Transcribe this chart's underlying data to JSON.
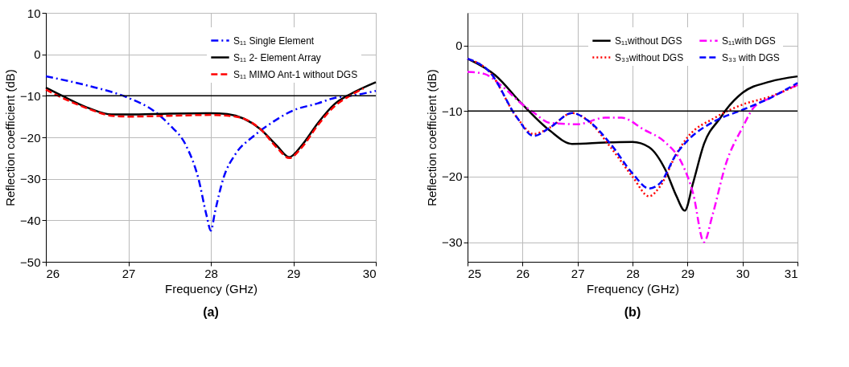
{
  "chart_data": [
    {
      "type": "line",
      "title": "(a)",
      "xlabel": "Frequency (GHz)",
      "ylabel": "Reflection coefficient (dB)",
      "xlim": [
        26,
        30
      ],
      "xticks": [
        26,
        27,
        28,
        29,
        30
      ],
      "ylim": [
        -50,
        10
      ],
      "yticks": [
        -50,
        -40,
        -30,
        -20,
        -10,
        0,
        10
      ],
      "grid": true,
      "legend": "top right",
      "marker": "none",
      "ref_lines": [
        {
          "axis": "y",
          "value": -10,
          "color": "#000000",
          "line_style": "solid"
        }
      ],
      "series": [
        {
          "name": "S₁₁ Single Element",
          "color": "#0000ff",
          "line_style": "dashdot",
          "x": [
            26,
            26.5,
            27,
            27.3,
            27.5,
            27.7,
            27.85,
            27.95,
            28.0,
            28.05,
            28.15,
            28.3,
            28.5,
            28.7,
            29,
            29.3,
            29.5,
            29.7,
            30
          ],
          "values": [
            -5.3,
            -7.5,
            -10.5,
            -13.5,
            -17,
            -22,
            -30,
            -39,
            -42.5,
            -38,
            -30,
            -24,
            -20,
            -17,
            -13.5,
            -11.8,
            -10.5,
            -10,
            -8.8
          ]
        },
        {
          "name": "S₁₁ 2- Element Array",
          "color": "#000000",
          "line_style": "solid",
          "x": [
            26,
            26.2,
            26.5,
            26.8,
            27,
            27.5,
            28,
            28.2,
            28.4,
            28.6,
            28.8,
            28.95,
            29.1,
            29.3,
            29.5,
            29.7,
            30
          ],
          "values": [
            -8,
            -10,
            -12.8,
            -14.5,
            -14.5,
            -14.3,
            -14.2,
            -14.4,
            -15.5,
            -18,
            -22,
            -24.8,
            -22,
            -16.5,
            -12,
            -9.5,
            -6.7
          ]
        },
        {
          "name": "S₁₁ MIMO Ant-1 without DGS",
          "color": "#ff0000",
          "line_style": "dashed",
          "x": [
            26,
            26.2,
            26.5,
            26.8,
            27,
            27.5,
            28,
            28.3,
            28.6,
            28.8,
            28.95,
            29.1,
            29.3,
            29.5,
            29.7,
            29.85
          ],
          "values": [
            -8.5,
            -10.5,
            -13,
            -14.8,
            -15,
            -14.8,
            -14.6,
            -15,
            -18,
            -22.5,
            -25,
            -22.5,
            -17,
            -12.5,
            -9.8,
            -8.2
          ]
        }
      ]
    },
    {
      "type": "line",
      "title": "(b)",
      "xlabel": "Frequency (GHz)",
      "ylabel": "Reflection coefficient (dB)",
      "xlim": [
        25,
        31
      ],
      "xticks": [
        25,
        26,
        27,
        28,
        29,
        30,
        31
      ],
      "ylim": [
        -33,
        5
      ],
      "yticks": [
        -30,
        -20,
        -10,
        0
      ],
      "grid": true,
      "legend": "top right",
      "marker": "none",
      "ref_lines": [
        {
          "axis": "y",
          "value": -10,
          "color": "#000000",
          "line_style": "solid"
        }
      ],
      "series": [
        {
          "name": "S₁₁without DGS",
          "color": "#000000",
          "line_style": "solid",
          "x": [
            25,
            25.5,
            26,
            26.5,
            26.9,
            27.5,
            28,
            28.3,
            28.6,
            28.8,
            28.95,
            29.1,
            29.3,
            29.6,
            29.7,
            30,
            30.5,
            31
          ],
          "values": [
            -2,
            -4.5,
            -9,
            -13,
            -15,
            -14.8,
            -14.7,
            -15.5,
            -19,
            -23,
            -25.2,
            -21,
            -15,
            -11,
            -9.8,
            -7.2,
            -5.5,
            -4.7
          ]
        },
        {
          "name": "S₁₁with DGS",
          "color": "#ff00ff",
          "line_style": "dashdot",
          "x": [
            25,
            25.3,
            25.6,
            26,
            26.2,
            26.5,
            27,
            27.5,
            27.8,
            28.2,
            28.6,
            28.9,
            29.1,
            29.3,
            29.45,
            29.7,
            30,
            30.2,
            30.5,
            31
          ],
          "values": [
            -4,
            -4.3,
            -6,
            -9,
            -10.2,
            -11.8,
            -12,
            -11,
            -11,
            -12.8,
            -14.8,
            -18,
            -22.5,
            -30,
            -26,
            -18,
            -12.5,
            -9.5,
            -8,
            -6
          ]
        },
        {
          "name": "S₃₃without DGS",
          "color": "#ff0000",
          "line_style": "dotted",
          "x": [
            25,
            25.4,
            25.9,
            26.2,
            26.5,
            26.9,
            27.2,
            27.6,
            28,
            28.3,
            28.5,
            28.8,
            29,
            29.5,
            30,
            30.5,
            31
          ],
          "values": [
            -2,
            -4,
            -11,
            -13.5,
            -12.5,
            -10.3,
            -11.5,
            -15.5,
            -20,
            -23,
            -21.5,
            -16.5,
            -14,
            -11,
            -9,
            -7.8,
            -6
          ]
        },
        {
          "name": "S₃₃ with DGS",
          "color": "#0000ff",
          "line_style": "dashed",
          "x": [
            25,
            25.4,
            25.9,
            26.2,
            26.5,
            26.9,
            27.2,
            27.6,
            28,
            28.3,
            28.5,
            28.8,
            29,
            29.5,
            30,
            30.5,
            31
          ],
          "values": [
            -2,
            -4,
            -11,
            -13.8,
            -12.5,
            -10.3,
            -11.5,
            -15,
            -19.5,
            -21.8,
            -21,
            -16.5,
            -14.5,
            -11.5,
            -9.8,
            -8,
            -5.7
          ]
        }
      ]
    }
  ]
}
